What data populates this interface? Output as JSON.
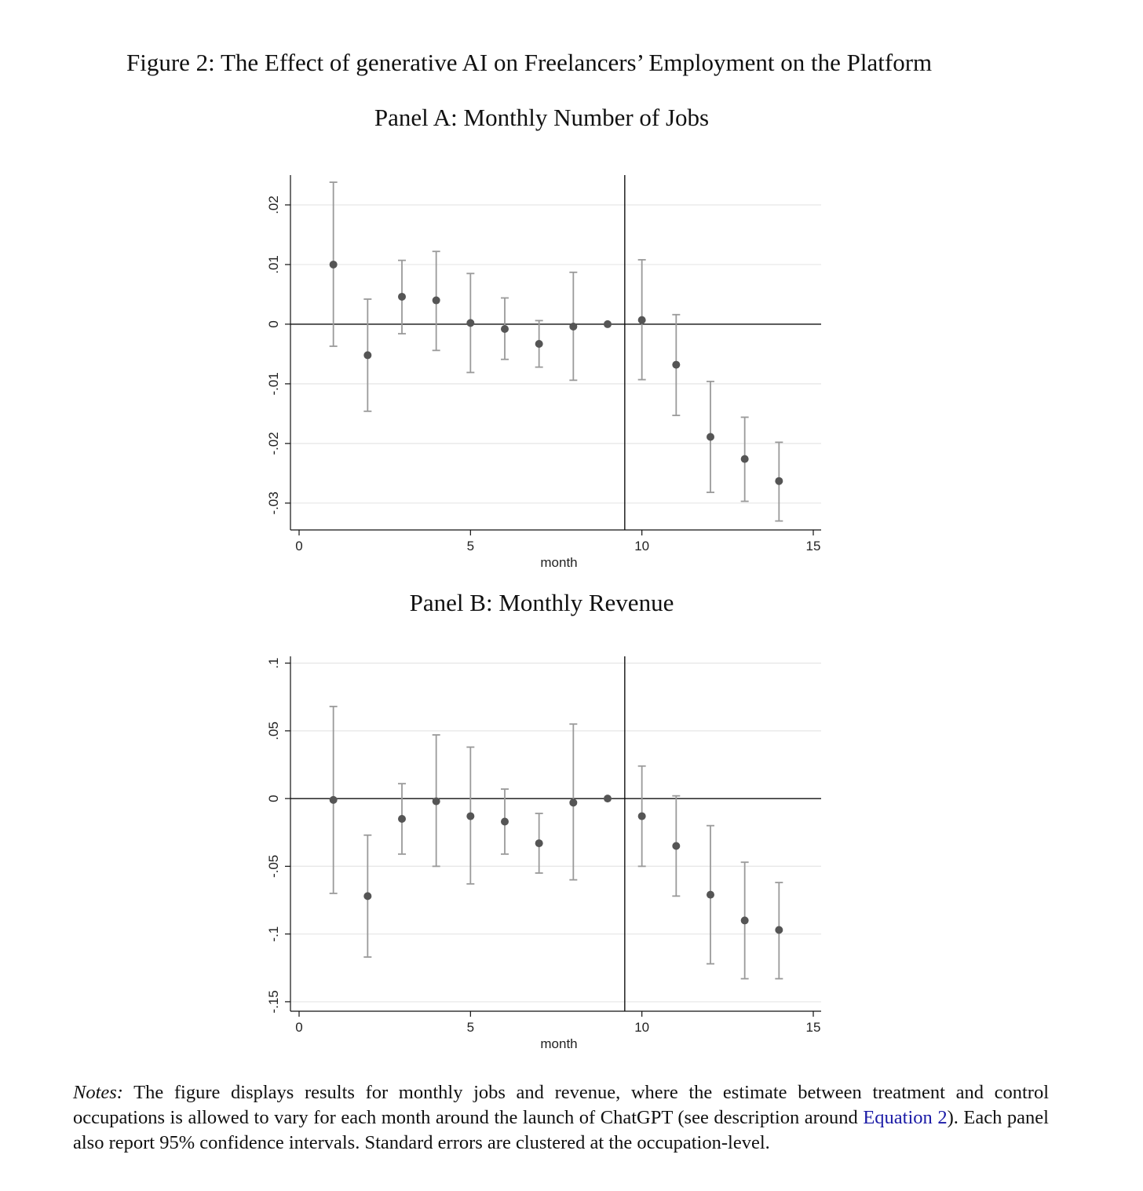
{
  "figure": {
    "title": "Figure 2: The Effect of generative AI on Freelancers’ Employment on the Platform"
  },
  "panels": [
    {
      "id": "a",
      "title": "Panel A: Monthly Number of Jobs"
    },
    {
      "id": "b",
      "title": "Panel B: Monthly Revenue"
    }
  ],
  "notes": {
    "label": "Notes:",
    "text_1": "The figure displays results for monthly jobs and revenue, where the estimate between treatment and control occupations is allowed to vary for each month around the launch of ChatGPT (see description around",
    "link": "Equation 2",
    "text_2": "). Each panel also report 95% confidence intervals. Standard errors are clustered at the occupation-level."
  },
  "colors": {
    "marker": "#555555",
    "ci": "#9a9a9a",
    "grid": "#e6e6e6",
    "axis": "#111111",
    "link": "#1a1aa6"
  },
  "chart_data": [
    {
      "type": "scatter",
      "title": "Panel A: Monthly Number of Jobs",
      "xlabel": "month",
      "ylabel": "",
      "xlim": [
        0,
        15
      ],
      "ylim": [
        -0.0345,
        0.025
      ],
      "xticks": [
        0,
        5,
        10,
        15
      ],
      "xtick_labels": [
        "0",
        "5",
        "10",
        "15"
      ],
      "yticks": [
        -0.03,
        -0.02,
        -0.01,
        0,
        0.01,
        0.02
      ],
      "ytick_labels": [
        "-.03",
        "-.02",
        "-.01",
        "0",
        ".01",
        ".02"
      ],
      "grid": true,
      "reference_lines": {
        "y": 0,
        "x": 9.5
      },
      "x": [
        1,
        2,
        3,
        4,
        5,
        6,
        7,
        8,
        9,
        10,
        11,
        12,
        13,
        14
      ],
      "y": [
        0.01,
        -0.0052,
        0.0046,
        0.004,
        0.0002,
        -0.0008,
        -0.0033,
        -0.0004,
        0.0,
        0.0007,
        -0.0068,
        -0.0189,
        -0.0226,
        -0.0263
      ],
      "ci_low": [
        -0.0037,
        -0.0146,
        -0.0016,
        -0.0044,
        -0.0081,
        -0.0059,
        -0.0072,
        -0.0094,
        0.0,
        -0.0093,
        -0.0153,
        -0.0282,
        -0.0297,
        -0.033
      ],
      "ci_high": [
        0.0238,
        0.0042,
        0.0107,
        0.0122,
        0.0085,
        0.0044,
        0.0006,
        0.0087,
        0.0,
        0.0108,
        0.0016,
        -0.0096,
        -0.0156,
        -0.0198
      ]
    },
    {
      "type": "scatter",
      "title": "Panel B: Monthly Revenue",
      "xlabel": "month",
      "ylabel": "",
      "xlim": [
        0,
        15
      ],
      "ylim": [
        -0.157,
        0.105
      ],
      "xticks": [
        0,
        5,
        10,
        15
      ],
      "xtick_labels": [
        "0",
        "5",
        "10",
        "15"
      ],
      "yticks": [
        -0.15,
        -0.1,
        -0.05,
        0,
        0.05,
        0.1
      ],
      "ytick_labels": [
        "-.15",
        "-.1",
        "-.05",
        "0",
        ".05",
        ".1"
      ],
      "grid": true,
      "reference_lines": {
        "y": 0,
        "x": 9.5
      },
      "x": [
        1,
        2,
        3,
        4,
        5,
        6,
        7,
        8,
        9,
        10,
        11,
        12,
        13,
        14
      ],
      "y": [
        -0.001,
        -0.072,
        -0.015,
        -0.002,
        -0.013,
        -0.017,
        -0.033,
        -0.003,
        0.0,
        -0.013,
        -0.035,
        -0.071,
        -0.09,
        -0.097
      ],
      "ci_low": [
        -0.07,
        -0.117,
        -0.041,
        -0.05,
        -0.063,
        -0.041,
        -0.055,
        -0.06,
        0.0,
        -0.05,
        -0.072,
        -0.122,
        -0.133,
        -0.133
      ],
      "ci_high": [
        0.068,
        -0.027,
        0.011,
        0.047,
        0.038,
        0.007,
        -0.011,
        0.055,
        0.0,
        0.024,
        0.002,
        -0.02,
        -0.047,
        -0.062
      ]
    }
  ]
}
